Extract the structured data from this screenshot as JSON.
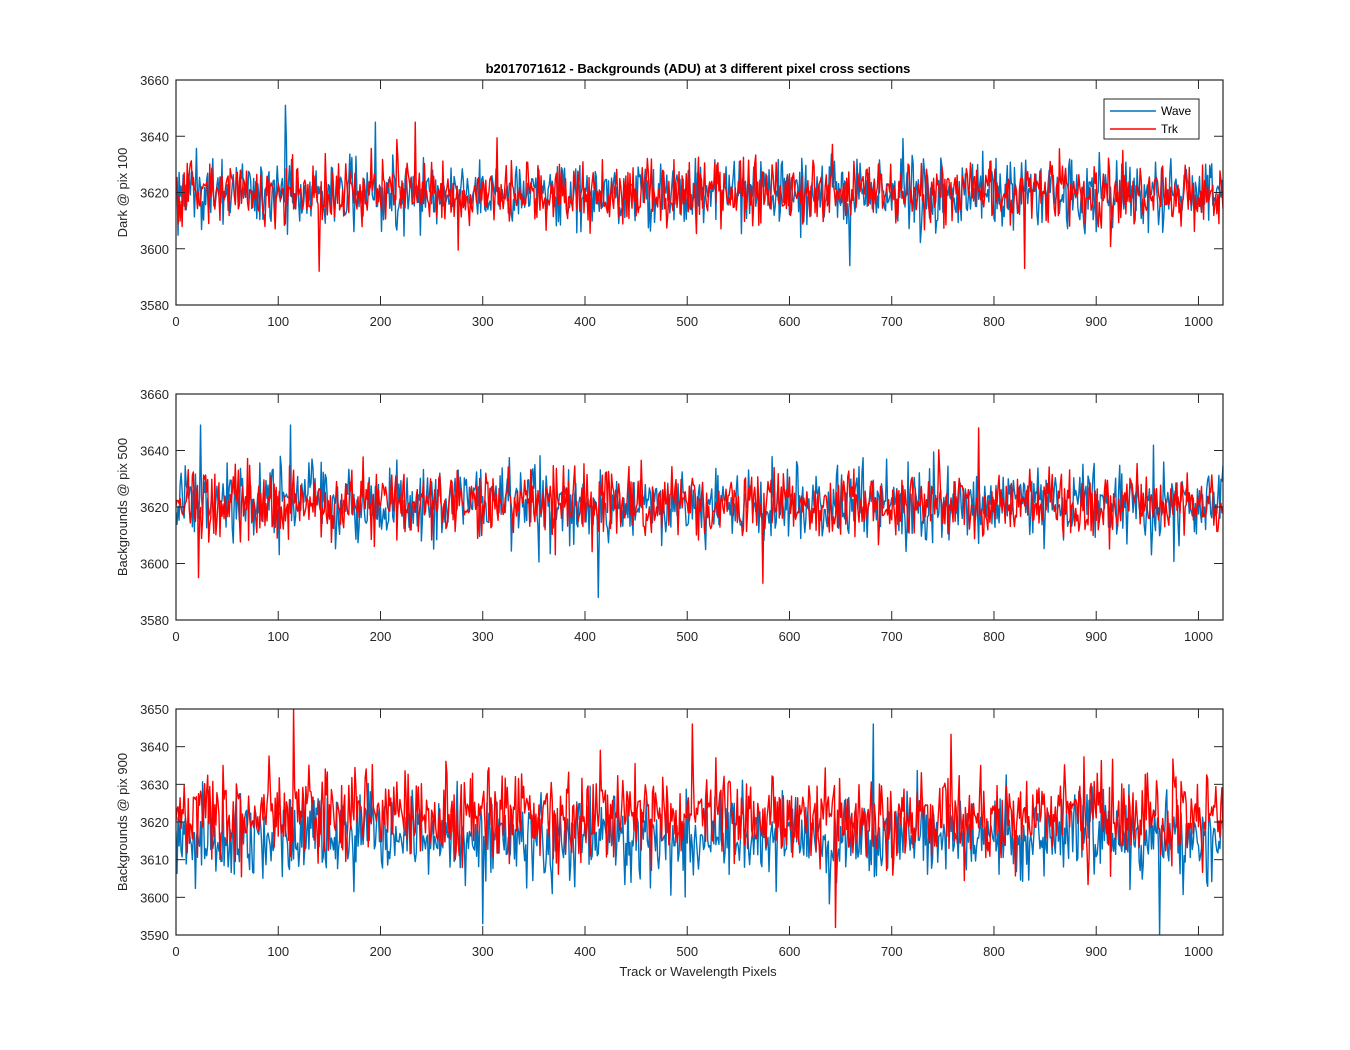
{
  "figure": {
    "title": "b2017071612 - Backgrounds (ADU) at 3 different pixel cross sections",
    "xlabel": "Track or Wavelength Pixels",
    "legend": [
      {
        "name": "Wave",
        "color": "#0072BD"
      },
      {
        "name": "Trk",
        "color": "#FF0000"
      }
    ]
  },
  "chart_data": [
    {
      "type": "line",
      "ylabel": "Dark @ pix 100",
      "xlim": [
        0,
        1024
      ],
      "ylim": [
        3580,
        3660
      ],
      "xticks": [
        0,
        100,
        200,
        300,
        400,
        500,
        600,
        700,
        800,
        900,
        1000
      ],
      "yticks": [
        3580,
        3600,
        3620,
        3640,
        3660
      ],
      "legend_position": "top-right",
      "series": [
        {
          "name": "Wave",
          "color": "#0072BD",
          "mean": 3620,
          "min": 3594,
          "max": 3651,
          "spikes": [
            [
              107,
              3651
            ],
            [
              195,
              3645
            ],
            [
              659,
              3594
            ]
          ]
        },
        {
          "name": "Trk",
          "color": "#FF0000",
          "mean": 3620,
          "min": 3592,
          "max": 3645,
          "spikes": [
            [
              140,
              3592
            ],
            [
              234,
              3645
            ],
            [
              830,
              3593
            ]
          ]
        }
      ]
    },
    {
      "type": "line",
      "ylabel": "Backgrounds @ pix 500",
      "xlim": [
        0,
        1024
      ],
      "ylim": [
        3580,
        3660
      ],
      "xticks": [
        0,
        100,
        200,
        300,
        400,
        500,
        600,
        700,
        800,
        900,
        1000
      ],
      "yticks": [
        3580,
        3600,
        3620,
        3640,
        3660
      ],
      "series": [
        {
          "name": "Wave",
          "color": "#0072BD",
          "mean": 3621,
          "min": 3588,
          "max": 3649,
          "spikes": [
            [
              24,
              3649
            ],
            [
              112,
              3649
            ],
            [
              413,
              3588
            ]
          ]
        },
        {
          "name": "Trk",
          "color": "#FF0000",
          "mean": 3621,
          "min": 3593,
          "max": 3648,
          "spikes": [
            [
              22,
              3595
            ],
            [
              574,
              3593
            ],
            [
              785,
              3648
            ]
          ]
        }
      ]
    },
    {
      "type": "line",
      "ylabel": "Backgrounds @ pix 900",
      "xlabel": "Track or Wavelength Pixels",
      "xlim": [
        0,
        1024
      ],
      "ylim": [
        3590,
        3650
      ],
      "xticks": [
        0,
        100,
        200,
        300,
        400,
        500,
        600,
        700,
        800,
        900,
        1000
      ],
      "yticks": [
        3590,
        3600,
        3610,
        3620,
        3630,
        3640,
        3650
      ],
      "series": [
        {
          "name": "Wave",
          "color": "#0072BD",
          "mean": 3616,
          "min": 3590,
          "max": 3646,
          "spikes": [
            [
              300,
              3593
            ],
            [
              682,
              3646
            ],
            [
              962,
              3590
            ]
          ]
        },
        {
          "name": "Trk",
          "color": "#FF0000",
          "mean": 3622,
          "min": 3592,
          "max": 3650,
          "spikes": [
            [
              115,
              3650
            ],
            [
              645,
              3592
            ],
            [
              505,
              3646
            ]
          ]
        }
      ]
    }
  ]
}
